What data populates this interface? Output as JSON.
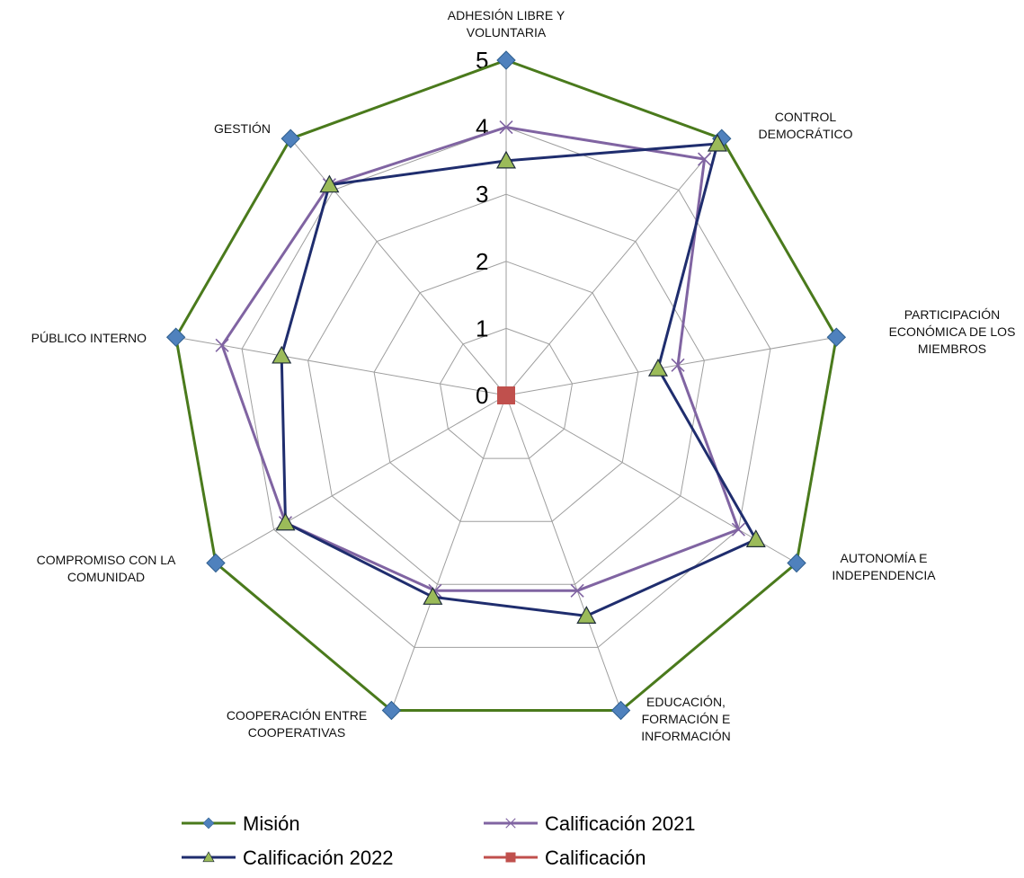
{
  "chart_data": {
    "type": "radar",
    "categories": [
      "ADHESIÓN LIBRE Y VOLUNTARIA",
      "CONTROL DEMOCRÁTICO",
      "PARTICIPACIÓN ECONÓMICA DE LOS MIEMBROS",
      "AUTONOMÍA E INDEPENDENCIA",
      "EDUCACIÓN, FORMACIÓN E INFORMACIÓN",
      "COOPERACIÓN ENTRE COOPERATIVAS",
      "COMPROMISO CON LA COMUNIDAD",
      "PÚBLICO INTERNO",
      "GESTIÓN"
    ],
    "category_lines": [
      [
        "ADHESIÓN LIBRE Y",
        "VOLUNTARIA"
      ],
      [
        "CONTROL",
        "DEMOCRÁTICO"
      ],
      [
        "PARTICIPACIÓN",
        "ECONÓMICA DE LOS",
        "MIEMBROS"
      ],
      [
        "AUTONOMÍA E",
        "INDEPENDENCIA"
      ],
      [
        "EDUCACIÓN,",
        "FORMACIÓN E",
        "INFORMACIÓN"
      ],
      [
        "COOPERACIÓN ENTRE",
        "COOPERATIVAS"
      ],
      [
        "COMPROMISO CON LA",
        "COMUNIDAD"
      ],
      [
        "PÚBLICO INTERNO"
      ],
      [
        "GESTIÓN"
      ]
    ],
    "r_ticks": [
      "0",
      "1",
      "2",
      "3",
      "4",
      "5"
    ],
    "rlim": [
      0,
      5
    ],
    "grid": true,
    "legend_position": "bottom",
    "series": [
      {
        "name": "Misión",
        "values": [
          5,
          5,
          5,
          5,
          5,
          5,
          5,
          5,
          5
        ],
        "color": "#4a7a1c",
        "marker": "diamond",
        "marker_color": "#4f81bd"
      },
      {
        "name": "Calificación 2021",
        "values": [
          4,
          4.6,
          2.6,
          4.0,
          3.1,
          3.1,
          3.8,
          4.3,
          4.1
        ],
        "color": "#8064a2",
        "marker": "x",
        "marker_color": "#8064a2"
      },
      {
        "name": "Calificación 2022",
        "values": [
          3.5,
          4.9,
          2.3,
          4.3,
          3.5,
          3.2,
          3.8,
          3.4,
          4.1
        ],
        "color": "#1f2d6e",
        "marker": "triangle",
        "marker_color": "#9bbb59"
      },
      {
        "name": "Calificación",
        "values": [
          0,
          0,
          0,
          0,
          0,
          0,
          0,
          0,
          0
        ],
        "color": "#c0504d",
        "marker": "square",
        "marker_color": "#c0504d"
      }
    ]
  }
}
